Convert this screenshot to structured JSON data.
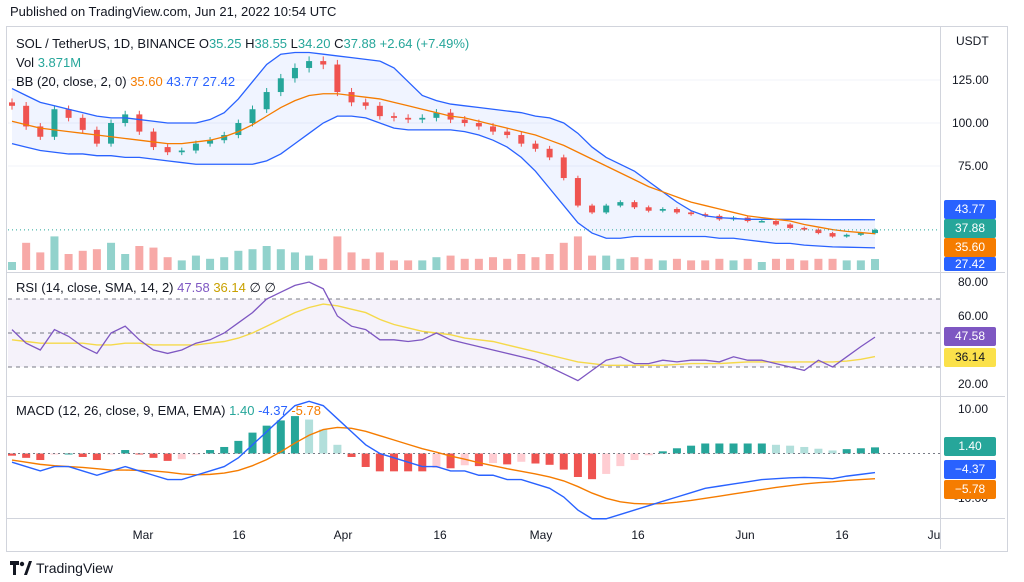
{
  "header": {
    "published": "Published on TradingView.com, Jun 21, 2022 10:54 UTC"
  },
  "price_pane": {
    "symbol": "SOL / TetherUS, 1D, BINANCE",
    "ohlc": {
      "o_label": "O",
      "o": "35.25",
      "h_label": "H",
      "h": "38.55",
      "l_label": "L",
      "l": "34.20",
      "c_label": "C",
      "c": "37.88",
      "change": "+2.64 (+7.49%)"
    },
    "vol_label": "Vol",
    "vol": "3.871M",
    "bb_label": "BB (20, close, 2, 0)",
    "bb_mid": "35.60",
    "bb_up": "43.77",
    "bb_low": "27.42",
    "currency": "USDT",
    "y_ticks": [
      "125.00",
      "100.00",
      "75.00"
    ],
    "badges": {
      "upper": "43.77",
      "close": "37.88",
      "mid": "35.60",
      "lower": "27.42"
    }
  },
  "rsi_pane": {
    "label": "RSI (14, close, SMA, 14, 2)",
    "rsi": "47.58",
    "sma": "36.14",
    "e1": "∅",
    "e2": "∅",
    "y_ticks": [
      "80.00",
      "60.00",
      "20.00"
    ],
    "badges": {
      "rsi": "47.58",
      "sma": "36.14"
    }
  },
  "macd_pane": {
    "label": "MACD (12, 26, close, 9, EMA, EMA)",
    "hist": "1.40",
    "macd": "-4.37",
    "signal": "-5.78",
    "y_ticks": [
      "10.00",
      "-10.00"
    ],
    "badges": {
      "hist": "1.40",
      "macd": "−4.37",
      "signal": "−5.78"
    }
  },
  "x_axis": [
    "Mar",
    "16",
    "Apr",
    "16",
    "May",
    "16",
    "Jun",
    "16",
    "Ju"
  ],
  "footer": {
    "brand": "TradingView"
  },
  "colors": {
    "up": "#26a69a",
    "down": "#ef5350",
    "bb_band": "#2962ff",
    "bb_mid": "#f57c00",
    "rsi": "#7e57c2",
    "rsi_sma": "#f5d94a",
    "macd": "#2962ff",
    "signal": "#f57c00"
  },
  "chart_data": {
    "type": "candlestick",
    "title": "SOL / TetherUS, 1D, BINANCE",
    "y_unit": "USDT",
    "x_dates": [
      "Feb 19",
      "Feb 21",
      "Feb 23",
      "Feb 25",
      "Feb 27",
      "Mar 1",
      "Mar 3",
      "Mar 5",
      "Mar 7",
      "Mar 9",
      "Mar 11",
      "Mar 13",
      "Mar 15",
      "Mar 17",
      "Mar 19",
      "Mar 21",
      "Mar 23",
      "Mar 25",
      "Mar 27",
      "Mar 29",
      "Mar 31",
      "Apr 2",
      "Apr 4",
      "Apr 6",
      "Apr 8",
      "Apr 10",
      "Apr 12",
      "Apr 14",
      "Apr 16",
      "Apr 18",
      "Apr 20",
      "Apr 22",
      "Apr 24",
      "Apr 26",
      "Apr 28",
      "Apr 30",
      "May 2",
      "May 4",
      "May 6",
      "May 8",
      "May 10",
      "May 12",
      "May 14",
      "May 16",
      "May 18",
      "May 20",
      "May 22",
      "May 24",
      "May 26",
      "May 28",
      "May 30",
      "Jun 1",
      "Jun 3",
      "Jun 5",
      "Jun 7",
      "Jun 9",
      "Jun 11",
      "Jun 13",
      "Jun 15",
      "Jun 17",
      "Jun 19",
      "Jun 21"
    ],
    "close": [
      110,
      98,
      92,
      108,
      103,
      96,
      88,
      100,
      105,
      95,
      86,
      83,
      84,
      88,
      90,
      93,
      100,
      108,
      118,
      126,
      132,
      136,
      134,
      118,
      112,
      110,
      104,
      103,
      102,
      103,
      106,
      102,
      100,
      98,
      95,
      93,
      88,
      85,
      80,
      68,
      52,
      48,
      52,
      54,
      51,
      49,
      50,
      48,
      47,
      46,
      44,
      45,
      43,
      43,
      41,
      39,
      38,
      36,
      34,
      35,
      36,
      37.88
    ],
    "bb_upper": [
      120,
      116,
      112,
      110,
      108,
      106,
      104,
      103,
      103,
      102,
      101,
      100,
      100,
      100,
      102,
      106,
      114,
      124,
      134,
      140,
      141,
      141,
      140,
      139,
      138,
      137,
      136,
      132,
      124,
      116,
      113,
      111,
      110,
      109,
      108,
      107,
      106,
      104,
      103,
      100,
      94,
      86,
      80,
      76,
      72,
      66,
      60,
      54,
      49,
      46,
      45,
      44.5,
      44,
      44,
      44,
      44,
      44,
      43.9,
      43.8,
      43.8,
      43.8,
      43.77
    ],
    "bb_mid": [
      101,
      99,
      97,
      96,
      95,
      94,
      93,
      92,
      91,
      90,
      89,
      88,
      88,
      89,
      90,
      92,
      95,
      99,
      104,
      109,
      113,
      116,
      117,
      117,
      116,
      115,
      114,
      112,
      110,
      108,
      106,
      104,
      103,
      101,
      99,
      97,
      95,
      93,
      90,
      87,
      83,
      79,
      75,
      71,
      67,
      63,
      60,
      57,
      54,
      52,
      50,
      48,
      46,
      45,
      44,
      43,
      41,
      39.5,
      38,
      37,
      36.3,
      35.6
    ],
    "bb_lower": [
      88,
      86,
      84,
      83,
      82,
      82,
      81,
      81,
      80,
      80,
      79,
      78,
      77,
      76,
      76,
      76,
      76,
      76,
      78,
      82,
      88,
      94,
      100,
      104,
      104,
      103,
      100,
      97,
      96,
      96,
      96,
      96,
      95,
      93,
      90,
      86,
      80,
      72,
      62,
      52,
      42,
      36,
      33,
      33,
      34,
      34,
      34,
      34,
      34,
      34,
      33,
      33,
      32,
      31,
      30,
      30,
      29,
      28.5,
      28,
      27.8,
      27.6,
      27.42
    ],
    "volume_note": "volume histogram, last value 3.871M",
    "rsi": [
      52,
      44,
      40,
      52,
      48,
      42,
      38,
      50,
      54,
      46,
      40,
      38,
      40,
      44,
      46,
      50,
      56,
      62,
      70,
      74,
      78,
      80,
      76,
      60,
      54,
      52,
      46,
      46,
      45,
      46,
      50,
      46,
      44,
      42,
      40,
      38,
      36,
      34,
      30,
      26,
      22,
      28,
      34,
      36,
      32,
      32,
      34,
      33,
      34,
      34,
      33,
      36,
      34,
      34,
      32,
      30,
      28,
      34,
      30,
      36,
      42,
      47.58
    ],
    "rsi_sma": [
      46,
      45,
      44,
      44,
      44,
      44,
      43,
      43,
      44,
      44,
      43,
      43,
      43,
      43,
      44,
      45,
      47,
      50,
      54,
      58,
      62,
      65,
      67,
      66,
      64,
      62,
      58,
      55,
      53,
      51,
      50,
      49,
      47,
      46,
      45,
      43,
      41,
      39,
      37,
      35,
      33,
      32,
      31,
      31,
      31,
      31,
      31,
      31.5,
      32,
      32,
      32,
      32.5,
      33,
      33,
      33,
      33,
      33,
      33,
      33,
      33.5,
      34.5,
      36.14
    ],
    "rsi_bands": [
      70,
      50,
      30
    ],
    "rsi_ylim": [
      15,
      85
    ],
    "macd": [
      -2,
      -3,
      -4,
      -3,
      -3,
      -4,
      -5,
      -4,
      -3,
      -4,
      -5,
      -6,
      -6,
      -5,
      -4,
      -3,
      -1,
      2,
      5,
      8,
      11,
      12,
      11,
      8,
      5,
      2,
      0,
      -1,
      -2,
      -3,
      -3,
      -4,
      -4,
      -5,
      -5,
      -6,
      -6,
      -7,
      -8,
      -10,
      -13,
      -15,
      -15,
      -14,
      -13,
      -12,
      -11,
      -10,
      -9,
      -8,
      -7.5,
      -7,
      -6.5,
      -6,
      -5.8,
      -5.6,
      -5.5,
      -5.6,
      -5.8,
      -5.2,
      -4.8,
      -4.37
    ],
    "signal": [
      -1.5,
      -2,
      -2.5,
      -2.8,
      -3,
      -3.2,
      -3.5,
      -3.8,
      -3.8,
      -3.9,
      -4,
      -4.3,
      -4.7,
      -4.9,
      -4.8,
      -4.5,
      -3.9,
      -2.8,
      -1.4,
      0.4,
      2.4,
      4.2,
      5.5,
      6,
      5.8,
      5.1,
      4.1,
      3.1,
      2.1,
      1.1,
      0.3,
      -0.6,
      -1.3,
      -2.1,
      -2.8,
      -3.5,
      -4.1,
      -4.7,
      -5.4,
      -6.3,
      -7.6,
      -9.1,
      -10.3,
      -11.1,
      -11.5,
      -11.6,
      -11.5,
      -11.2,
      -10.8,
      -10.3,
      -9.8,
      -9.3,
      -8.8,
      -8.3,
      -7.8,
      -7.4,
      -7,
      -6.7,
      -6.5,
      -6.2,
      -6,
      -5.78
    ],
    "macd_hist_last": 1.4,
    "macd_ylim": [
      -20,
      14
    ]
  }
}
